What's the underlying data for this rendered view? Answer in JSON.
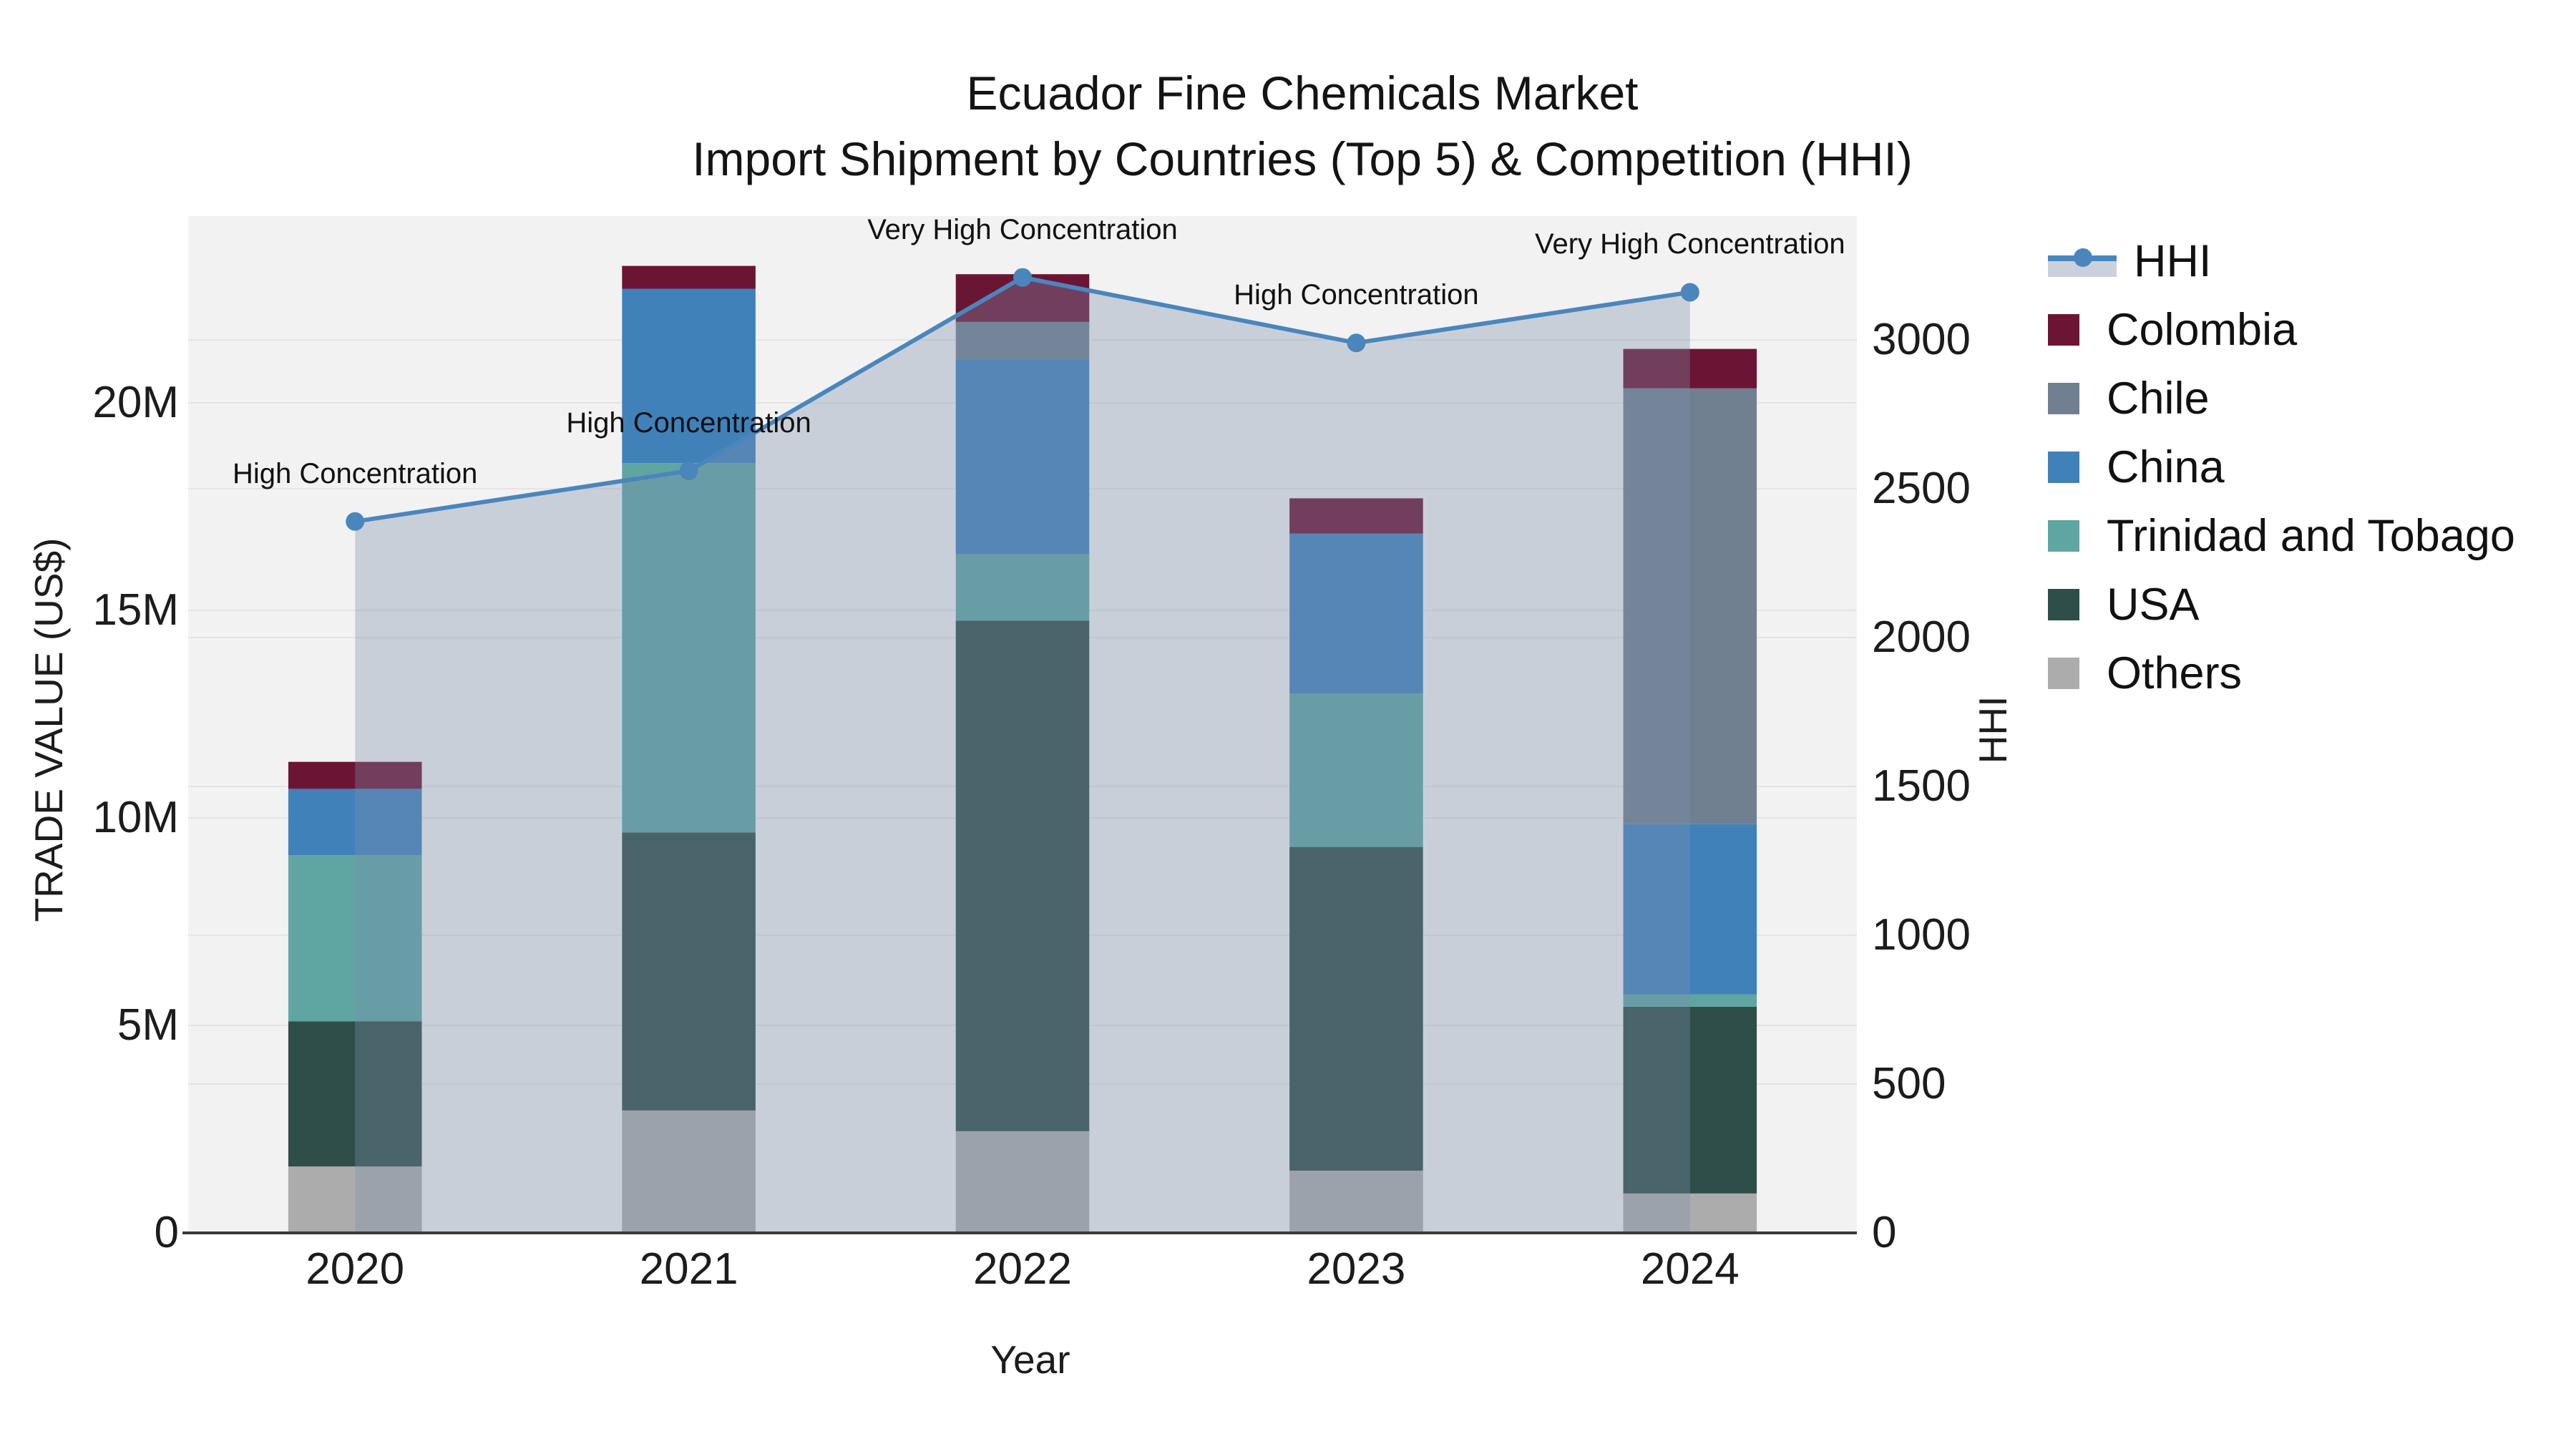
{
  "title": {
    "line1": "Ecuador Fine Chemicals Market",
    "line2": "Import Shipment by Countries (Top 5) & Competition (HHI)"
  },
  "axes": {
    "x": {
      "title": "Year",
      "tick_labels": [
        "2020",
        "2021",
        "2022",
        "2023",
        "2024"
      ]
    },
    "y_left": {
      "title": "TRADE VALUE (US$)",
      "tick_values": [
        0,
        5,
        10,
        15,
        20
      ],
      "tick_labels": [
        "0",
        "5M",
        "10M",
        "15M",
        "20M"
      ],
      "max": 24.5
    },
    "y_right": {
      "title": "HHI",
      "tick_values": [
        0,
        500,
        1000,
        1500,
        2000,
        2500,
        3000
      ],
      "tick_labels": [
        "0",
        "500",
        "1000",
        "1500",
        "2000",
        "2500",
        "3000"
      ],
      "max": 3416
    }
  },
  "legend": {
    "order": [
      "HHI",
      "Colombia",
      "Chile",
      "China",
      "Trinidad and Tobago",
      "USA",
      "Others"
    ]
  },
  "chart_data": {
    "type": "bar+line",
    "categories": [
      "2020",
      "2021",
      "2022",
      "2023",
      "2024"
    ],
    "bar_unit": "million US$",
    "stack_order_bottom_to_top": [
      "Others",
      "USA",
      "Trinidad and Tobago",
      "China",
      "Chile",
      "Colombia"
    ],
    "series": [
      {
        "name": "Others",
        "color": "#ACACAC",
        "values": [
          1.6,
          2.95,
          2.45,
          1.5,
          0.95
        ]
      },
      {
        "name": "USA",
        "color": "#2F4E49",
        "values": [
          3.5,
          6.7,
          12.3,
          7.8,
          4.5
        ]
      },
      {
        "name": "Trinidad and Tobago",
        "color": "#5FA5A2",
        "values": [
          4.0,
          8.9,
          1.6,
          3.7,
          0.3
        ]
      },
      {
        "name": "China",
        "color": "#4181BA",
        "values": [
          1.6,
          4.2,
          4.7,
          3.85,
          4.1
        ]
      },
      {
        "name": "Chile",
        "color": "#708090",
        "values": [
          0,
          0,
          0.9,
          0,
          10.5
        ]
      },
      {
        "name": "Colombia",
        "color": "#6B1534",
        "values": [
          0.65,
          0.55,
          1.15,
          0.85,
          0.95
        ]
      }
    ],
    "line": {
      "name": "HHI",
      "color": "#4A86BC",
      "values": [
        2390,
        2560,
        3210,
        2990,
        3160
      ],
      "area_fill": "rgba(126,143,171,0.35)",
      "marker": "circle"
    },
    "annotations": [
      "High Concentration",
      "High Concentration",
      "Very High Concentration",
      "High Concentration",
      "Very High Concentration"
    ],
    "xlabel": "Year",
    "ylabel_left": "TRADE VALUE (US$)",
    "ylabel_right": "HHI",
    "ylim_left": [
      0,
      24.5
    ],
    "ylim_right": [
      0,
      3416
    ],
    "plot_bg": "#F2F2F2",
    "grid_color": "#E4E4E4",
    "axis_line_color": "#3A3A3A",
    "hhi_legend_band_color": "#CBD1DC",
    "grid": "on",
    "legend_position": "right"
  }
}
